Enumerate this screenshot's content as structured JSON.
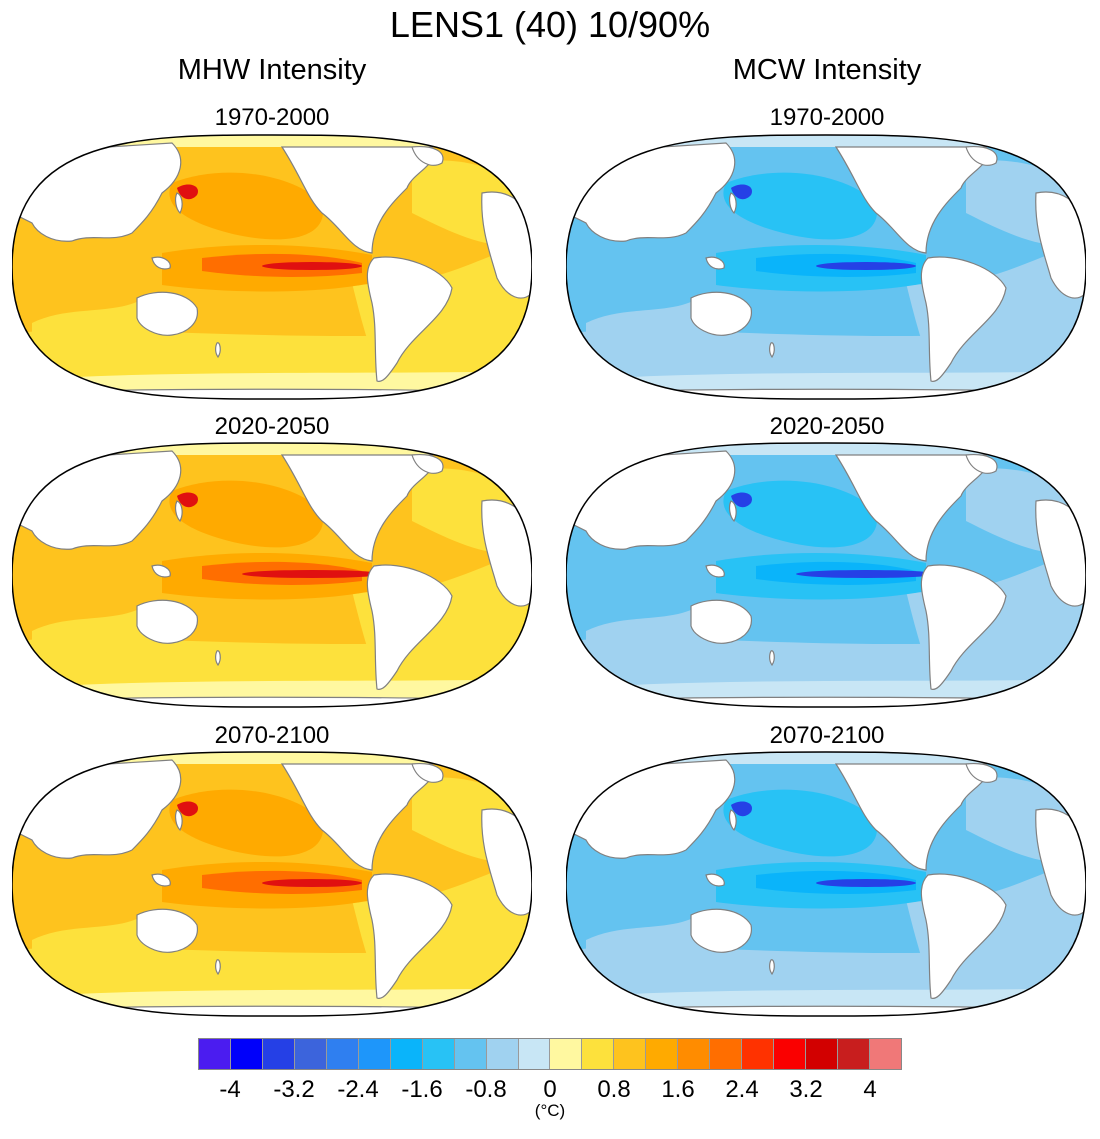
{
  "title": "LENS1 (40) 10/90%",
  "columns": [
    {
      "title": "MHW Intensity",
      "theme": "warm",
      "panels": [
        "1970-2000",
        "2020-2050",
        "2070-2100"
      ]
    },
    {
      "title": "MCW Intensity",
      "theme": "cool",
      "panels": [
        "1970-2000",
        "2020-2050",
        "2070-2100"
      ]
    }
  ],
  "colorbar": {
    "colors": [
      "#4b1cf0",
      "#0000fa",
      "#2540e6",
      "#3c64dc",
      "#2f7ff0",
      "#1e96fa",
      "#0ab4fa",
      "#28c2f5",
      "#64c3f0",
      "#a0d2f0",
      "#c8e6f5",
      "#fff8a0",
      "#fde13c",
      "#fec31e",
      "#ffaa00",
      "#ff8c00",
      "#ff6e00",
      "#ff3200",
      "#fa0000",
      "#d20000",
      "#c81e1e",
      "#f07878"
    ],
    "ticks": [
      "-4",
      "-3.2",
      "-2.4",
      "-1.6",
      "-0.8",
      "0",
      "0.8",
      "1.6",
      "2.4",
      "3.2",
      "4"
    ],
    "units": "(°C)"
  },
  "palette": {
    "warm": {
      "base": "#fde13c",
      "mid": "#fec31e",
      "strong": "#ffaa00",
      "hot": "#ff6e00",
      "max": "#e01010",
      "polar": "#fff8a0"
    },
    "cool": {
      "base": "#a0d2f0",
      "mid": "#64c3f0",
      "strong": "#28c2f5",
      "hot": "#0ab4fa",
      "max": "#2540e6",
      "polar": "#c8e6f5"
    }
  }
}
